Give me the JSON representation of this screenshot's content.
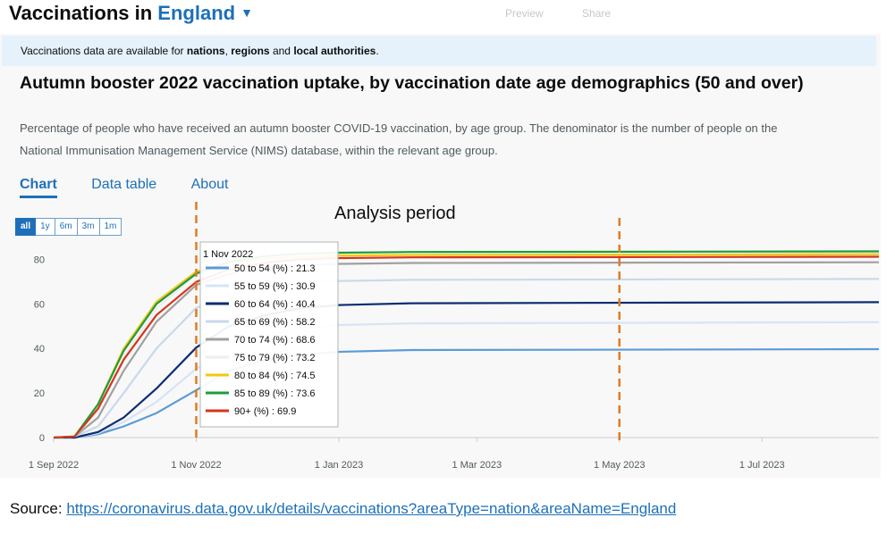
{
  "header": {
    "title_prefix": "Vaccinations in",
    "area": "England",
    "faded_buttons": [
      "Preview",
      "Share"
    ]
  },
  "notice": {
    "prefix": "Vaccinations data are available for",
    "nations": "nations",
    "sep1": ",",
    "regions": "regions",
    "and": "and",
    "local": "local authorities",
    "end": "."
  },
  "card": {
    "title": "Autumn booster 2022 vaccination uptake, by vaccination date age demographics (50 and over)",
    "description": "Percentage of people who have received an autumn booster COVID-19 vaccination, by age group. The denominator is the number of people on the National Immunisation Management Service (NIMS) database, within the relevant age group.",
    "tabs": [
      "Chart",
      "Data table",
      "About"
    ],
    "range_buttons": [
      "all",
      "1y",
      "6m",
      "3m",
      "1m"
    ]
  },
  "annotation": {
    "analysis_label": "Analysis period"
  },
  "tooltip": {
    "date": "1 Nov 2022",
    "rows": [
      {
        "label": "50 to 54 (%) : 21.3",
        "color": "#5b9bd5"
      },
      {
        "label": "55 to 59 (%) : 30.9",
        "color": "#d6e4f5"
      },
      {
        "label": "60 to 64 (%) : 40.4",
        "color": "#0b2d72"
      },
      {
        "label": "65 to 69 (%) : 58.2",
        "color": "#c8d9ec"
      },
      {
        "label": "70 to 74 (%) : 68.6",
        "color": "#a0a0a0"
      },
      {
        "label": "75 to 79 (%) : 73.2",
        "color": "#eeeeee"
      },
      {
        "label": "80 to 84 (%) : 74.5",
        "color": "#f2c811"
      },
      {
        "label": "85 to 89 (%) : 73.6",
        "color": "#1e9c3c"
      },
      {
        "label": "90+ (%) : 69.9",
        "color": "#d4351c"
      }
    ]
  },
  "source": {
    "label": "Source:",
    "url": "https://coronavirus.data.gov.uk/details/vaccinations?areaType=nation&areaName=England"
  },
  "chart_data": {
    "type": "line",
    "x_ticks": [
      "1 Sep 2022",
      "1 Nov 2022",
      "1 Jan 2023",
      "1 Mar 2023",
      "1 May 2023",
      "1 Jul 2023"
    ],
    "y_ticks": [
      0,
      20,
      40,
      60,
      80
    ],
    "ylim": [
      0,
      85
    ],
    "xlim": [
      "2022-09-01",
      "2023-08-20"
    ],
    "grid": false,
    "markers": [
      {
        "date": "2022-11-01",
        "style": "dashed",
        "color": "#e07b25"
      },
      {
        "date": "2023-05-01",
        "style": "dashed",
        "color": "#e07b25"
      }
    ],
    "series": [
      {
        "name": "50 to 54 (%)",
        "color": "#5b9bd5",
        "points": [
          [
            "2022-09-01",
            0
          ],
          [
            "2022-09-10",
            0
          ],
          [
            "2022-09-20",
            1.5
          ],
          [
            "2022-10-01",
            5
          ],
          [
            "2022-10-15",
            11
          ],
          [
            "2022-11-01",
            21.3
          ],
          [
            "2022-11-15",
            30
          ],
          [
            "2022-12-01",
            35
          ],
          [
            "2022-12-15",
            37
          ],
          [
            "2023-01-01",
            38.5
          ],
          [
            "2023-02-01",
            39.3
          ],
          [
            "2023-08-20",
            39.7
          ]
        ]
      },
      {
        "name": "55 to 59 (%)",
        "color": "#d6e4f5",
        "points": [
          [
            "2022-09-01",
            0
          ],
          [
            "2022-09-10",
            0
          ],
          [
            "2022-09-20",
            2
          ],
          [
            "2022-10-01",
            7
          ],
          [
            "2022-10-15",
            16
          ],
          [
            "2022-11-01",
            30.9
          ],
          [
            "2022-11-15",
            40
          ],
          [
            "2022-12-01",
            45.5
          ],
          [
            "2022-12-15",
            49
          ],
          [
            "2023-01-01",
            50.5
          ],
          [
            "2023-02-01",
            51.3
          ],
          [
            "2023-08-20",
            51.8
          ]
        ]
      },
      {
        "name": "60 to 64 (%)",
        "color": "#0b2d72",
        "points": [
          [
            "2022-09-01",
            0
          ],
          [
            "2022-09-10",
            0
          ],
          [
            "2022-09-20",
            2.5
          ],
          [
            "2022-10-01",
            9
          ],
          [
            "2022-10-15",
            22
          ],
          [
            "2022-11-01",
            40.4
          ],
          [
            "2022-11-15",
            50
          ],
          [
            "2022-12-01",
            55
          ],
          [
            "2022-12-15",
            58
          ],
          [
            "2023-01-01",
            59.5
          ],
          [
            "2023-02-01",
            60.3
          ],
          [
            "2023-08-20",
            60.8
          ]
        ]
      },
      {
        "name": "65 to 69 (%)",
        "color": "#c8d9ec",
        "points": [
          [
            "2022-09-01",
            0
          ],
          [
            "2022-09-10",
            0.5
          ],
          [
            "2022-09-20",
            5
          ],
          [
            "2022-10-01",
            20
          ],
          [
            "2022-10-15",
            40
          ],
          [
            "2022-11-01",
            58.2
          ],
          [
            "2022-11-15",
            64
          ],
          [
            "2022-12-01",
            67.5
          ],
          [
            "2022-12-15",
            69.5
          ],
          [
            "2023-01-01",
            70.3
          ],
          [
            "2023-02-01",
            70.8
          ],
          [
            "2023-08-20",
            71.2
          ]
        ]
      },
      {
        "name": "70 to 74 (%)",
        "color": "#a0a0a0",
        "points": [
          [
            "2022-09-01",
            0
          ],
          [
            "2022-09-10",
            0.5
          ],
          [
            "2022-09-20",
            9
          ],
          [
            "2022-10-01",
            30
          ],
          [
            "2022-10-15",
            52
          ],
          [
            "2022-11-01",
            68.6
          ],
          [
            "2022-11-15",
            73.5
          ],
          [
            "2022-12-01",
            76
          ],
          [
            "2022-12-15",
            77.3
          ],
          [
            "2023-01-01",
            78
          ],
          [
            "2023-02-01",
            78.4
          ],
          [
            "2023-08-20",
            78.7
          ]
        ]
      },
      {
        "name": "75 to 79 (%)",
        "color": "#eeeeee",
        "points": [
          [
            "2022-09-01",
            0
          ],
          [
            "2022-09-10",
            0.5
          ],
          [
            "2022-09-20",
            12
          ],
          [
            "2022-10-01",
            36
          ],
          [
            "2022-10-15",
            58
          ],
          [
            "2022-11-01",
            73.2
          ],
          [
            "2022-11-15",
            77
          ],
          [
            "2022-12-01",
            79
          ],
          [
            "2022-12-15",
            80
          ],
          [
            "2023-01-01",
            80.6
          ],
          [
            "2023-02-01",
            80.9
          ],
          [
            "2023-08-20",
            81.2
          ]
        ]
      },
      {
        "name": "80 to 84 (%)",
        "color": "#f2c811",
        "points": [
          [
            "2022-09-01",
            0
          ],
          [
            "2022-09-10",
            0.5
          ],
          [
            "2022-09-20",
            15
          ],
          [
            "2022-10-01",
            40
          ],
          [
            "2022-10-15",
            61
          ],
          [
            "2022-11-01",
            74.5
          ],
          [
            "2022-11-15",
            78.5
          ],
          [
            "2022-12-01",
            80.3
          ],
          [
            "2022-12-15",
            81.2
          ],
          [
            "2023-01-01",
            81.7
          ],
          [
            "2023-02-01",
            82
          ],
          [
            "2023-08-20",
            82.3
          ]
        ]
      },
      {
        "name": "85 to 89 (%)",
        "color": "#1e9c3c",
        "points": [
          [
            "2022-09-01",
            0
          ],
          [
            "2022-09-10",
            0.5
          ],
          [
            "2022-09-20",
            15
          ],
          [
            "2022-10-01",
            39
          ],
          [
            "2022-10-15",
            60
          ],
          [
            "2022-11-01",
            73.6
          ],
          [
            "2022-11-15",
            79
          ],
          [
            "2022-12-01",
            81.5
          ],
          [
            "2022-12-15",
            82.5
          ],
          [
            "2023-01-01",
            83
          ],
          [
            "2023-02-01",
            83.3
          ],
          [
            "2023-08-20",
            83.6
          ]
        ]
      },
      {
        "name": "90+ (%)",
        "color": "#d4351c",
        "points": [
          [
            "2022-09-01",
            0
          ],
          [
            "2022-09-10",
            0.5
          ],
          [
            "2022-09-20",
            13
          ],
          [
            "2022-10-01",
            35
          ],
          [
            "2022-10-15",
            55
          ],
          [
            "2022-11-01",
            69.9
          ],
          [
            "2022-11-15",
            75.5
          ],
          [
            "2022-12-01",
            78.5
          ],
          [
            "2022-12-15",
            80
          ],
          [
            "2023-01-01",
            80.6
          ],
          [
            "2023-02-01",
            80.9
          ],
          [
            "2023-08-20",
            81.2
          ]
        ]
      }
    ]
  }
}
